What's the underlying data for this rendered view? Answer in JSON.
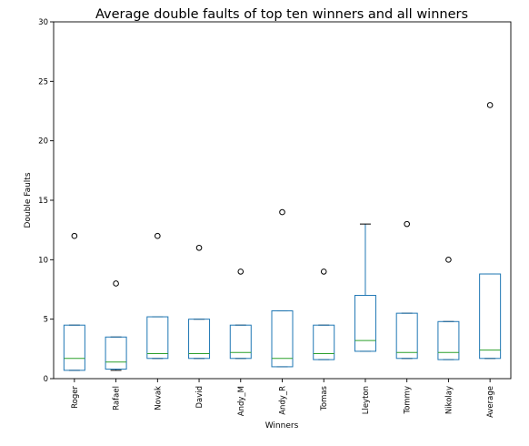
{
  "chart_data": {
    "type": "box",
    "title": "Average double faults of top ten winners and all winners",
    "xlabel": "Winners",
    "ylabel": "Double Faults",
    "ylim": [
      0,
      30
    ],
    "yticks": [
      0,
      5,
      10,
      15,
      20,
      25,
      30
    ],
    "grid": false,
    "colors": {
      "box": "#1f77b4",
      "median": "#2ca02c",
      "cap": "#000000",
      "flier": "#000000"
    },
    "categories": [
      "Roger",
      "Rafael",
      "Novak",
      "David",
      "Andy_M",
      "Andy_R",
      "Tomas",
      "Lleyton",
      "Tommy",
      "Nikolay",
      "Average"
    ],
    "boxes": [
      {
        "label": "Roger",
        "whislo": 0.7,
        "q1": 0.7,
        "med": 1.7,
        "q3": 4.5,
        "whishi": 4.5,
        "fliers": [
          12
        ]
      },
      {
        "label": "Rafael",
        "whislo": 0.7,
        "q1": 0.8,
        "med": 1.4,
        "q3": 3.5,
        "whishi": 3.5,
        "fliers": [
          8
        ]
      },
      {
        "label": "Novak",
        "whislo": 1.7,
        "q1": 1.7,
        "med": 2.1,
        "q3": 5.2,
        "whishi": 5.2,
        "fliers": [
          12
        ]
      },
      {
        "label": "David",
        "whislo": 1.7,
        "q1": 1.7,
        "med": 2.1,
        "q3": 5.0,
        "whishi": 5.0,
        "fliers": [
          11
        ]
      },
      {
        "label": "Andy_M",
        "whislo": 1.7,
        "q1": 1.7,
        "med": 2.2,
        "q3": 4.5,
        "whishi": 4.5,
        "fliers": [
          9
        ]
      },
      {
        "label": "Andy_R",
        "whislo": 1.0,
        "q1": 1.0,
        "med": 1.7,
        "q3": 5.7,
        "whishi": 5.7,
        "fliers": [
          14
        ]
      },
      {
        "label": "Tomas",
        "whislo": 1.6,
        "q1": 1.6,
        "med": 2.1,
        "q3": 4.5,
        "whishi": 4.5,
        "fliers": [
          9
        ]
      },
      {
        "label": "Lleyton",
        "whislo": 2.3,
        "q1": 2.3,
        "med": 3.2,
        "q3": 7.0,
        "whishi": 13.0,
        "fliers": []
      },
      {
        "label": "Tommy",
        "whislo": 1.7,
        "q1": 1.7,
        "med": 2.2,
        "q3": 5.5,
        "whishi": 5.5,
        "fliers": [
          13
        ]
      },
      {
        "label": "Nikolay",
        "whislo": 1.6,
        "q1": 1.6,
        "med": 2.2,
        "q3": 4.8,
        "whishi": 4.8,
        "fliers": [
          10
        ]
      },
      {
        "label": "Average",
        "whislo": 1.7,
        "q1": 1.7,
        "med": 2.4,
        "q3": 8.8,
        "whishi": 8.8,
        "fliers": [
          23
        ]
      }
    ]
  }
}
